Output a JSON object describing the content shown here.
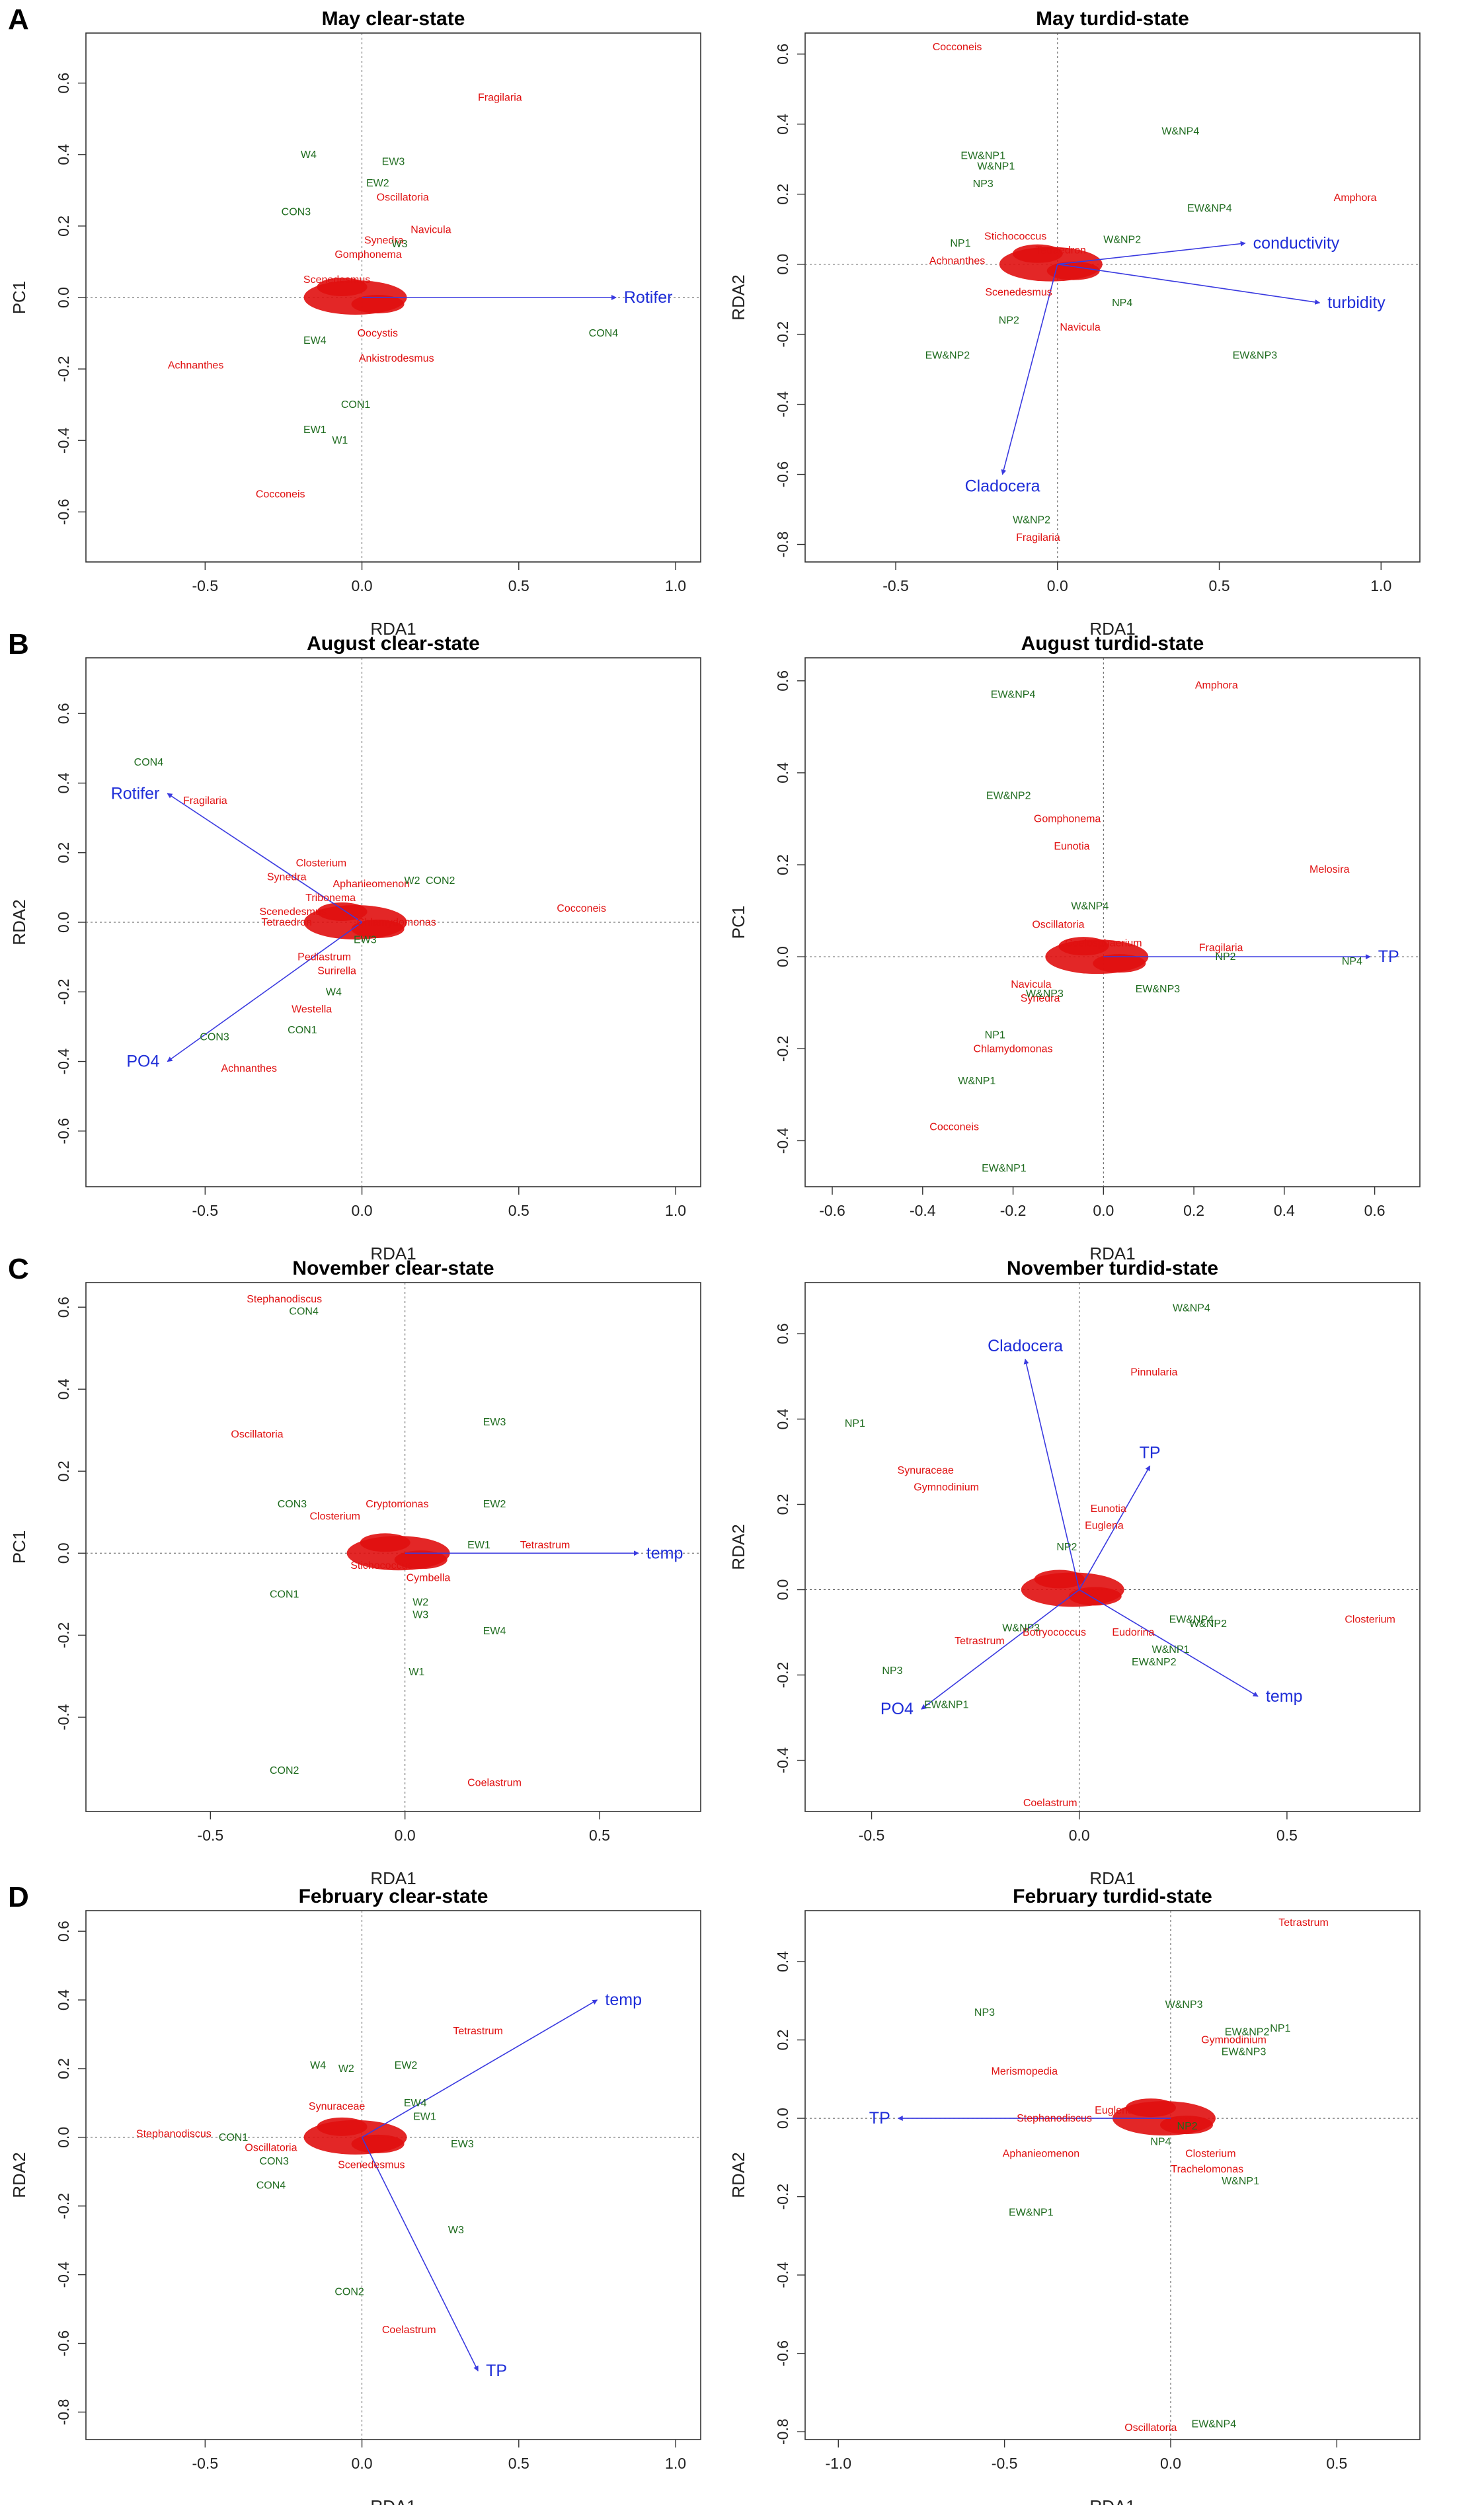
{
  "panels": [
    {
      "letter": "A",
      "title": "May clear-state",
      "xlabel": "RDA1",
      "ylabel": "PC1",
      "xticks": [
        "-0.5",
        "0.0",
        "0.5",
        "1.0"
      ],
      "yticks": [
        "-0.6",
        "-0.4",
        "-0.2",
        "0.0",
        "0.2",
        "0.4",
        "0.6"
      ]
    },
    {
      "letter": "",
      "title": "May turdid-state",
      "xlabel": "RDA1",
      "ylabel": "RDA2",
      "xticks": [
        "-0.5",
        "0.0",
        "0.5",
        "1.0"
      ],
      "yticks": [
        "-0.8",
        "-0.6",
        "-0.4",
        "-0.2",
        "0.0",
        "0.2",
        "0.4",
        "0.6"
      ]
    },
    {
      "letter": "B",
      "title": "August clear-state",
      "xlabel": "RDA1",
      "ylabel": "RDA2",
      "xticks": [
        "-0.5",
        "0.0",
        "0.5",
        "1.0"
      ],
      "yticks": [
        "-0.6",
        "-0.4",
        "-0.2",
        "0.0",
        "0.2",
        "0.4",
        "0.6"
      ]
    },
    {
      "letter": "",
      "title": "August turdid-state",
      "xlabel": "RDA1",
      "ylabel": "PC1",
      "xticks": [
        "-0.6",
        "-0.4",
        "-0.2",
        "0.0",
        "0.2",
        "0.4",
        "0.6"
      ],
      "yticks": [
        "-0.4",
        "-0.2",
        "0.0",
        "0.2",
        "0.4",
        "0.6"
      ]
    },
    {
      "letter": "C",
      "title": "November clear-state",
      "xlabel": "RDA1",
      "ylabel": "PC1",
      "xticks": [
        "-0.5",
        "0.0",
        "0.5"
      ],
      "yticks": [
        "-0.4",
        "-0.2",
        "0.0",
        "0.2",
        "0.4",
        "0.6"
      ]
    },
    {
      "letter": "",
      "title": "November turdid-state",
      "xlabel": "RDA1",
      "ylabel": "RDA2",
      "xticks": [
        "-0.5",
        "0.0",
        "0.5"
      ],
      "yticks": [
        "-0.4",
        "-0.2",
        "0.0",
        "0.2",
        "0.4",
        "0.6"
      ]
    },
    {
      "letter": "D",
      "title": "February clear-state",
      "xlabel": "RDA1",
      "ylabel": "RDA2",
      "xticks": [
        "-0.5",
        "0.0",
        "0.5",
        "1.0"
      ],
      "yticks": [
        "-0.8",
        "-0.6",
        "-0.4",
        "-0.2",
        "0.0",
        "0.2",
        "0.4",
        "0.6"
      ]
    },
    {
      "letter": "",
      "title": "February turdid-state",
      "xlabel": "RDA1",
      "ylabel": "RDA2",
      "xticks": [
        "-1.0",
        "-0.5",
        "0.0",
        "0.5"
      ],
      "yticks": [
        "-0.8",
        "-0.6",
        "-0.4",
        "-0.2",
        "0.0",
        "0.2",
        "0.4"
      ]
    }
  ],
  "chart_data": [
    {
      "type": "scatter",
      "title": "May clear-state",
      "xlabel": "RDA1",
      "ylabel": "PC1",
      "xlim": [
        -0.88,
        1.08
      ],
      "ylim": [
        -0.74,
        0.74
      ],
      "sites": [
        [
          "W4",
          -0.17,
          0.4
        ],
        [
          "EW3",
          0.1,
          0.38
        ],
        [
          "EW2",
          0.05,
          0.32
        ],
        [
          "CON3",
          -0.21,
          0.24
        ],
        [
          "EW4",
          -0.15,
          -0.12
        ],
        [
          "CON1",
          -0.02,
          -0.3
        ],
        [
          "EW1",
          -0.15,
          -0.37
        ],
        [
          "W1",
          -0.07,
          -0.4
        ],
        [
          "CON4",
          0.77,
          -0.1
        ],
        [
          "W3",
          0.12,
          0.15
        ]
      ],
      "species": [
        [
          "Fragilaria",
          0.44,
          0.56
        ],
        [
          "Oscillatoria",
          0.13,
          0.28
        ],
        [
          "Navicula",
          0.22,
          0.19
        ],
        [
          "Gomphonema",
          0.02,
          0.12
        ],
        [
          "Synedra",
          0.07,
          0.16
        ],
        [
          "Achnanthes",
          -0.53,
          -0.19
        ],
        [
          "Cocconeis",
          -0.26,
          -0.55
        ],
        [
          "Ankistrodesmus",
          0.11,
          -0.17
        ],
        [
          "Oocystis",
          0.05,
          -0.1
        ],
        [
          "Scenedesmus",
          -0.08,
          0.05
        ]
      ],
      "env": [
        [
          "Rotifer",
          0.81,
          0.0
        ]
      ]
    },
    {
      "type": "scatter",
      "title": "May turdid-state",
      "xlabel": "RDA1",
      "ylabel": "RDA2",
      "xlim": [
        -0.78,
        1.12
      ],
      "ylim": [
        -0.85,
        0.66
      ],
      "sites": [
        [
          "W&NP4",
          0.38,
          0.38
        ],
        [
          "EW&NP1",
          -0.23,
          0.31
        ],
        [
          "W&NP1",
          -0.19,
          0.28
        ],
        [
          "NP3",
          -0.23,
          0.23
        ],
        [
          "EW&NP4",
          0.47,
          0.16
        ],
        [
          "NP1",
          -0.3,
          0.06
        ],
        [
          "W&NP2",
          0.2,
          0.07
        ],
        [
          "NP2",
          -0.15,
          -0.16
        ],
        [
          "NP4",
          0.2,
          -0.11
        ],
        [
          "EW&NP2",
          -0.34,
          -0.26
        ],
        [
          "EW&NP3",
          0.61,
          -0.26
        ],
        [
          "W&NP2",
          -0.08,
          -0.73
        ]
      ],
      "species": [
        [
          "Cocconeis",
          -0.31,
          0.62
        ],
        [
          "Amphora",
          0.92,
          0.19
        ],
        [
          "Stichococcus",
          -0.13,
          0.08
        ],
        [
          "Achnanthes",
          -0.31,
          0.01
        ],
        [
          "Scenedesmus",
          -0.12,
          -0.08
        ],
        [
          "Navicula",
          0.07,
          -0.18
        ],
        [
          "Fragilaria",
          -0.06,
          -0.78
        ],
        [
          "Tetraedron",
          0.01,
          0.04
        ]
      ],
      "env": [
        [
          "conductivity",
          0.58,
          0.06
        ],
        [
          "turbidity",
          0.81,
          -0.11
        ],
        [
          "Cladocera",
          -0.17,
          -0.6
        ]
      ]
    },
    {
      "type": "scatter",
      "title": "August clear-state",
      "xlabel": "RDA1",
      "ylabel": "RDA2",
      "xlim": [
        -0.88,
        1.08
      ],
      "ylim": [
        -0.76,
        0.76
      ],
      "sites": [
        [
          "CON4",
          -0.68,
          0.46
        ],
        [
          "W4",
          -0.09,
          -0.2
        ],
        [
          "CON3",
          -0.47,
          -0.33
        ],
        [
          "CON1",
          -0.19,
          -0.31
        ],
        [
          "EW3",
          0.01,
          -0.05
        ],
        [
          "CON2",
          0.25,
          0.12
        ],
        [
          "W2",
          0.16,
          0.12
        ]
      ],
      "species": [
        [
          "Fragilaria",
          -0.5,
          0.35
        ],
        [
          "Closterium",
          -0.13,
          0.17
        ],
        [
          "Synedra",
          -0.24,
          0.13
        ],
        [
          "Aphanieomenon",
          0.03,
          0.11
        ],
        [
          "Tribonema",
          -0.1,
          0.07
        ],
        [
          "Scenedesmus",
          -0.22,
          0.03
        ],
        [
          "Tetraedron",
          -0.24,
          0.0
        ],
        [
          "Pediastrum",
          -0.12,
          -0.1
        ],
        [
          "Surirella",
          -0.08,
          -0.14
        ],
        [
          "Westella",
          -0.16,
          -0.25
        ],
        [
          "Achnanthes",
          -0.36,
          -0.42
        ],
        [
          "Cocconeis",
          0.7,
          0.04
        ],
        [
          "Chlamydomonas",
          0.11,
          0.0
        ]
      ],
      "env": [
        [
          "Rotifer",
          -0.62,
          0.37
        ],
        [
          "PO4",
          -0.62,
          -0.4
        ]
      ]
    },
    {
      "type": "scatter",
      "title": "August turdid-state",
      "xlabel": "RDA1",
      "ylabel": "PC1",
      "xlim": [
        -0.66,
        0.7
      ],
      "ylim": [
        -0.5,
        0.65
      ],
      "sites": [
        [
          "EW&NP4",
          -0.2,
          0.57
        ],
        [
          "EW&NP2",
          -0.21,
          0.35
        ],
        [
          "W&NP4",
          -0.03,
          0.11
        ],
        [
          "NP2",
          0.27,
          0.0
        ],
        [
          "NP4",
          0.55,
          -0.01
        ],
        [
          "EW&NP3",
          0.12,
          -0.07
        ],
        [
          "W&NP3",
          -0.13,
          -0.08
        ],
        [
          "NP1",
          -0.24,
          -0.17
        ],
        [
          "W&NP1",
          -0.28,
          -0.27
        ],
        [
          "EW&NP1",
          -0.22,
          -0.46
        ]
      ],
      "species": [
        [
          "Amphora",
          0.25,
          0.59
        ],
        [
          "Gomphonema",
          -0.08,
          0.3
        ],
        [
          "Eunotia",
          -0.07,
          0.24
        ],
        [
          "Melosira",
          0.5,
          0.19
        ],
        [
          "Oscillatoria",
          -0.1,
          0.07
        ],
        [
          "Coelosphaerium",
          0.0,
          0.03
        ],
        [
          "Fragilaria",
          0.26,
          0.02
        ],
        [
          "Navicula",
          -0.16,
          -0.06
        ],
        [
          "Synedra",
          -0.14,
          -0.09
        ],
        [
          "Chlamydomonas",
          -0.2,
          -0.2
        ],
        [
          "Cocconeis",
          -0.33,
          -0.37
        ]
      ],
      "env": [
        [
          "TP",
          0.59,
          0.0
        ]
      ]
    },
    {
      "type": "scatter",
      "title": "November clear-state",
      "xlabel": "RDA1",
      "ylabel": "PC1",
      "xlim": [
        -0.82,
        0.76
      ],
      "ylim": [
        -0.63,
        0.66
      ],
      "sites": [
        [
          "CON4",
          -0.26,
          0.59
        ],
        [
          "EW3",
          0.23,
          0.32
        ],
        [
          "CON3",
          -0.29,
          0.12
        ],
        [
          "EW2",
          0.23,
          0.12
        ],
        [
          "EW1",
          0.19,
          0.02
        ],
        [
          "CON1",
          -0.31,
          -0.1
        ],
        [
          "W2",
          0.04,
          -0.12
        ],
        [
          "W3",
          0.04,
          -0.15
        ],
        [
          "EW4",
          0.23,
          -0.19
        ],
        [
          "W1",
          0.03,
          -0.29
        ],
        [
          "CON2",
          -0.31,
          -0.53
        ]
      ],
      "species": [
        [
          "Stephanodiscus",
          -0.31,
          0.62
        ],
        [
          "Oscillatoria",
          -0.38,
          0.29
        ],
        [
          "Cryptomonas",
          -0.02,
          0.12
        ],
        [
          "Closterium",
          -0.18,
          0.09
        ],
        [
          "Tetrastrum",
          0.36,
          0.02
        ],
        [
          "Cymbella",
          0.06,
          -0.06
        ],
        [
          "Stichococcus",
          -0.06,
          -0.03
        ],
        [
          "Coelastrum",
          0.23,
          -0.56
        ]
      ],
      "env": [
        [
          "temp",
          0.6,
          0.0
        ]
      ]
    },
    {
      "type": "scatter",
      "title": "November turdid-state",
      "xlabel": "RDA1",
      "ylabel": "RDA2",
      "xlim": [
        -0.66,
        0.82
      ],
      "ylim": [
        -0.52,
        0.72
      ],
      "sites": [
        [
          "W&NP4",
          0.27,
          0.66
        ],
        [
          "NP1",
          -0.54,
          0.39
        ],
        [
          "NP2",
          -0.03,
          0.1
        ],
        [
          "EW&NP4",
          0.27,
          -0.07
        ],
        [
          "W&NP2",
          0.31,
          -0.08
        ],
        [
          "W&NP1",
          0.22,
          -0.14
        ],
        [
          "EW&NP2",
          0.18,
          -0.17
        ],
        [
          "NP3",
          -0.45,
          -0.19
        ],
        [
          "EW&NP1",
          -0.32,
          -0.27
        ],
        [
          "W&NP3",
          -0.14,
          -0.09
        ]
      ],
      "species": [
        [
          "Pinnularia",
          0.18,
          0.51
        ],
        [
          "Synuraceae",
          -0.37,
          0.28
        ],
        [
          "Gymnodinium",
          -0.32,
          0.24
        ],
        [
          "Eunotia",
          0.07,
          0.19
        ],
        [
          "Euglena",
          0.06,
          0.15
        ],
        [
          "Closterium",
          0.7,
          -0.07
        ],
        [
          "Tetrastrum",
          -0.24,
          -0.12
        ],
        [
          "Botryococcus",
          -0.06,
          -0.1
        ],
        [
          "Eudorina",
          0.13,
          -0.1
        ],
        [
          "Coelastrum",
          -0.07,
          -0.5
        ]
      ],
      "env": [
        [
          "Cladocera",
          -0.13,
          0.54
        ],
        [
          "TP",
          0.17,
          0.29
        ],
        [
          "temp",
          0.43,
          -0.25
        ],
        [
          "PO4",
          -0.38,
          -0.28
        ]
      ]
    },
    {
      "type": "scatter",
      "title": "February clear-state",
      "xlabel": "RDA1",
      "ylabel": "RDA2",
      "xlim": [
        -0.88,
        1.08
      ],
      "ylim": [
        -0.88,
        0.66
      ],
      "sites": [
        [
          "W4",
          -0.14,
          0.21
        ],
        [
          "W2",
          -0.05,
          0.2
        ],
        [
          "EW2",
          0.14,
          0.21
        ],
        [
          "EW4",
          0.17,
          0.1
        ],
        [
          "EW1",
          0.2,
          0.06
        ],
        [
          "EW3",
          0.32,
          -0.02
        ],
        [
          "CON1",
          -0.41,
          0.0
        ],
        [
          "CON3",
          -0.28,
          -0.07
        ],
        [
          "CON4",
          -0.29,
          -0.14
        ],
        [
          "W3",
          0.3,
          -0.27
        ],
        [
          "CON2",
          -0.04,
          -0.45
        ]
      ],
      "species": [
        [
          "Tetrastrum",
          0.37,
          0.31
        ],
        [
          "Synuraceae",
          -0.08,
          0.09
        ],
        [
          "Stephanodiscus",
          -0.6,
          0.01
        ],
        [
          "Oscillatoria",
          -0.29,
          -0.03
        ],
        [
          "Scenedesmus",
          0.03,
          -0.08
        ],
        [
          "Coelastrum",
          0.15,
          -0.56
        ]
      ],
      "env": [
        [
          "temp",
          0.75,
          0.4
        ],
        [
          "TP",
          0.37,
          -0.68
        ]
      ]
    },
    {
      "type": "scatter",
      "title": "February turdid-state",
      "xlabel": "RDA1",
      "ylabel": "RDA2",
      "xlim": [
        -1.1,
        0.75
      ],
      "ylim": [
        -0.82,
        0.53
      ],
      "sites": [
        [
          "NP3",
          -0.56,
          0.27
        ],
        [
          "W&NP3",
          0.04,
          0.29
        ],
        [
          "NP1",
          0.33,
          0.23
        ],
        [
          "EW&NP2",
          0.23,
          0.22
        ],
        [
          "EW&NP3",
          0.22,
          0.17
        ],
        [
          "NP2",
          0.05,
          -0.02
        ],
        [
          "NP4",
          -0.03,
          -0.06
        ],
        [
          "W&NP1",
          0.21,
          -0.16
        ],
        [
          "EW&NP1",
          -0.42,
          -0.24
        ],
        [
          "EW&NP4",
          0.13,
          -0.78
        ]
      ],
      "species": [
        [
          "Tetrastrum",
          0.4,
          0.5
        ],
        [
          "Gymnodinium",
          0.19,
          0.2
        ],
        [
          "Merismopedia",
          -0.44,
          0.12
        ],
        [
          "Stephanodiscus",
          -0.35,
          0.0
        ],
        [
          "Aphanieomenon",
          -0.39,
          -0.09
        ],
        [
          "Euglena",
          -0.17,
          0.02
        ],
        [
          "Closterium",
          0.12,
          -0.09
        ],
        [
          "Trachelomonas",
          0.11,
          -0.13
        ],
        [
          "Oscillatoria",
          -0.06,
          -0.79
        ]
      ],
      "env": [
        [
          "TP",
          -0.82,
          0.0
        ]
      ]
    }
  ]
}
